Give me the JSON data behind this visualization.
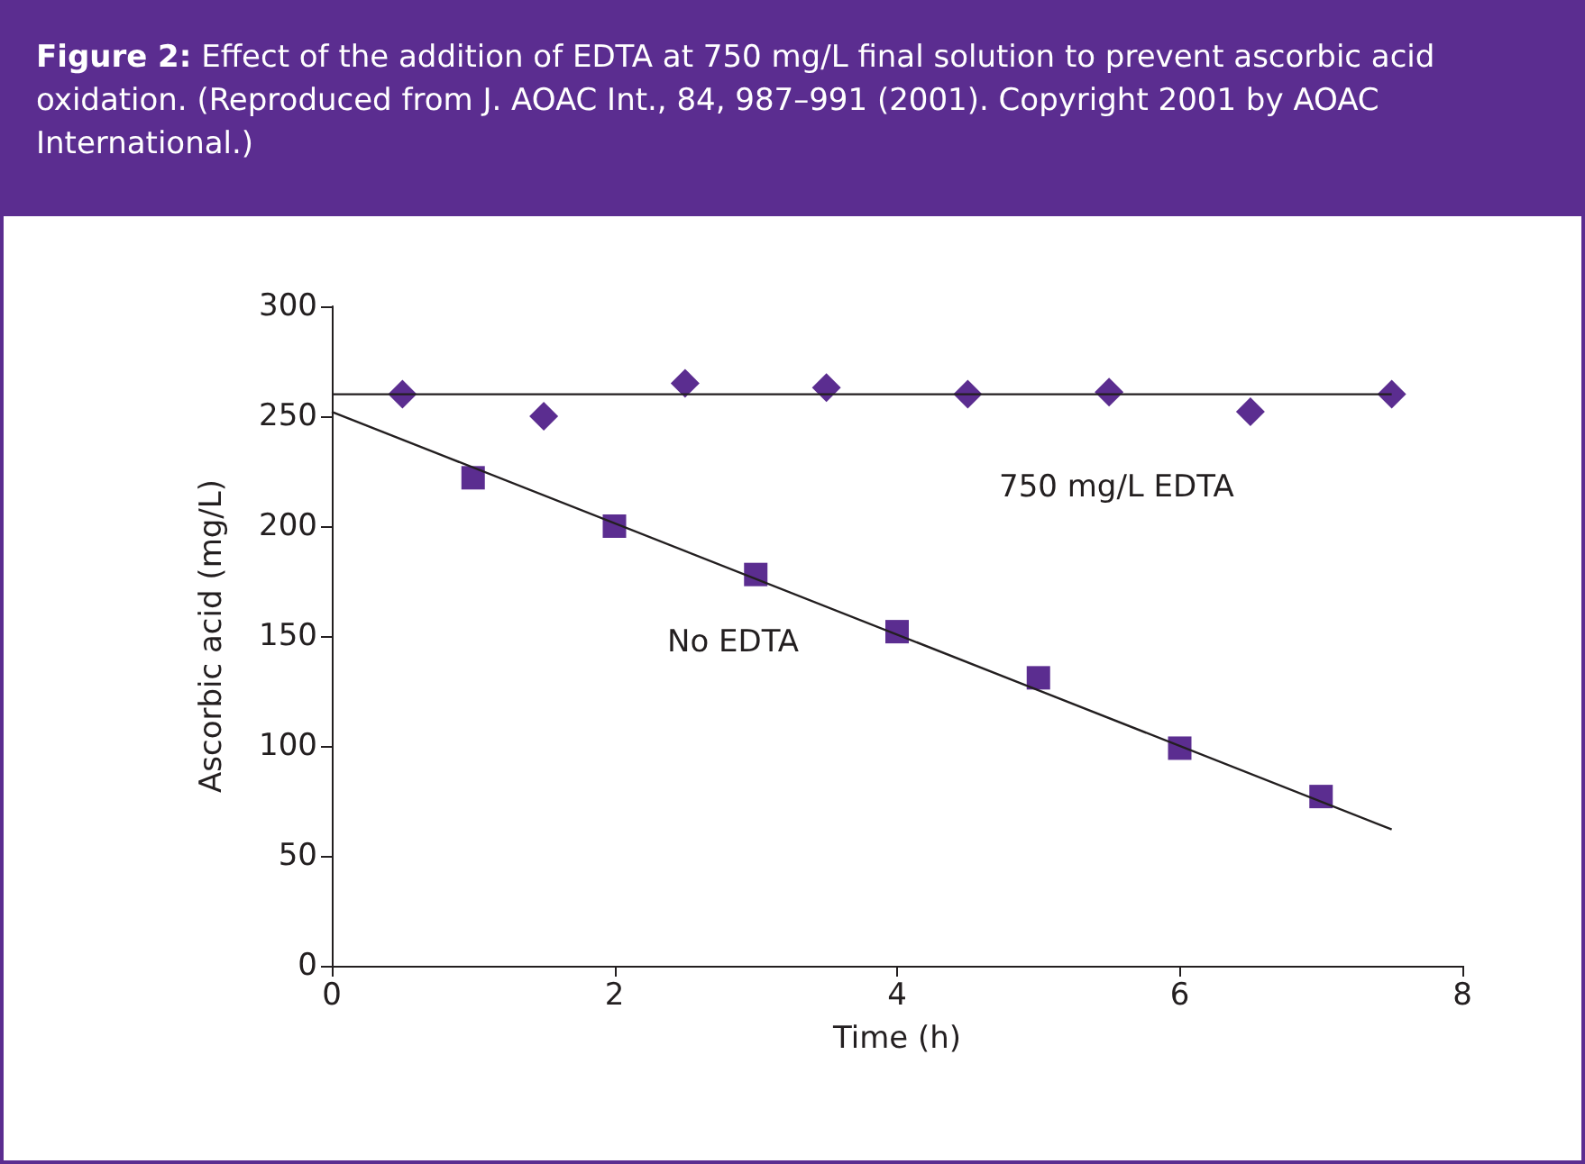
{
  "chart_data": {
    "type": "scatter",
    "title": "Figure 2: Effect of the addition of EDTA at 750 mg/L final solution to prevent ascorbic acid oxidation. (Reproduced from J. AOAC Int., 84, 987–991 (2001). Copyright 2001 by AOAC International.)",
    "xlabel": "Time (h)",
    "ylabel": "Ascorbic acid (mg/L)",
    "xlim": [
      0,
      8
    ],
    "xticks": [
      0,
      2,
      4,
      6,
      8
    ],
    "ylim": [
      0,
      300
    ],
    "yticks": [
      0,
      50,
      100,
      150,
      200,
      250,
      300
    ],
    "grid": false,
    "series": [
      {
        "marker": "diamond",
        "color": "#5b2d90",
        "x": [
          0.5,
          1.5,
          2.5,
          3.5,
          4.5,
          5.5,
          6.5,
          7.5
        ],
        "values": [
          260,
          250,
          265,
          263,
          260,
          261,
          252,
          260
        ]
      },
      {
        "marker": "square",
        "color": "#5b2d90",
        "x": [
          1,
          2,
          3,
          4,
          5,
          6,
          7
        ],
        "values": [
          222,
          200,
          178,
          152,
          131,
          99,
          77
        ]
      },
      {
        "type": "line",
        "marker": "none",
        "color": "#231f20",
        "x": [
          0,
          7.5
        ],
        "values": [
          260,
          260
        ]
      },
      {
        "type": "line",
        "marker": "none",
        "color": "#231f20",
        "x": [
          0,
          7.5
        ],
        "values": [
          252,
          62
        ]
      }
    ],
    "annotations": [
      "750 mg/L EDTA",
      "No EDTA"
    ]
  }
}
